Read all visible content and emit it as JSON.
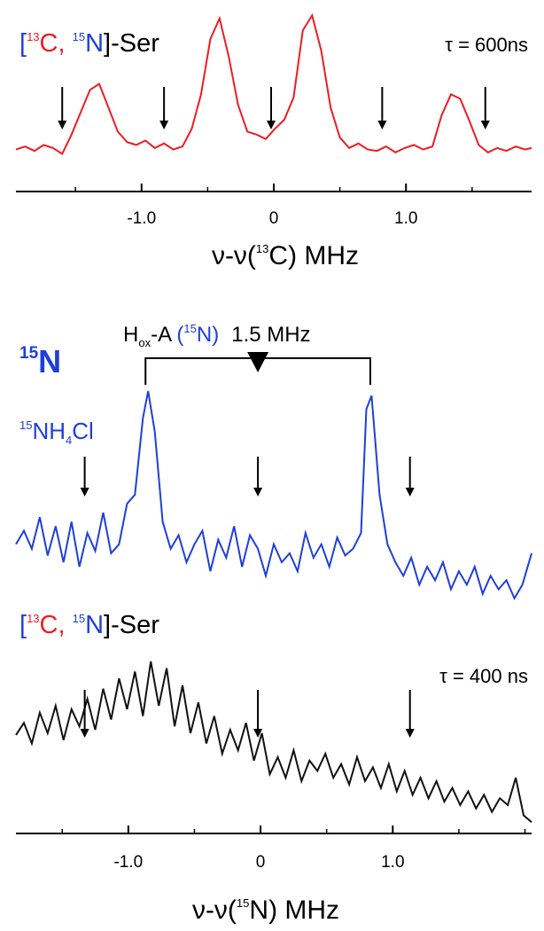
{
  "chart_data": [
    {
      "type": "line",
      "panel": "13C ENDOR",
      "xlabel_prefix": "ν-ν(",
      "xlabel_sup": "13",
      "xlabel_element": "C",
      "xlabel_suffix": ") MHz",
      "xlim": [
        -1.95,
        1.95
      ],
      "xticks": [
        -1.0,
        0,
        1.0
      ],
      "xtick_labels": [
        "-1.0",
        "0",
        "1.0"
      ],
      "grid": false,
      "series": [
        {
          "color": "#ee1c25",
          "label_parts": {
            "open": "[",
            "sup1": "13",
            "el1": "C, ",
            "sup2": "15",
            "el2": "N",
            "close": "]-Ser"
          },
          "tau_text": "τ = 600ns",
          "x": [
            -1.95,
            -1.88,
            -1.81,
            -1.74,
            -1.67,
            -1.6,
            -1.53,
            -1.46,
            -1.39,
            -1.32,
            -1.25,
            -1.18,
            -1.11,
            -1.04,
            -0.97,
            -0.9,
            -0.83,
            -0.76,
            -0.69,
            -0.62,
            -0.55,
            -0.48,
            -0.41,
            -0.34,
            -0.27,
            -0.2,
            -0.13,
            -0.06,
            0.01,
            0.08,
            0.15,
            0.22,
            0.29,
            0.36,
            0.43,
            0.5,
            0.57,
            0.64,
            0.71,
            0.78,
            0.85,
            0.92,
            0.99,
            1.06,
            1.13,
            1.2,
            1.27,
            1.34,
            1.41,
            1.48,
            1.55,
            1.62,
            1.69,
            1.76,
            1.83,
            1.9,
            1.95
          ],
          "y": [
            0.08,
            0.1,
            0.07,
            0.11,
            0.09,
            0.05,
            0.18,
            0.33,
            0.48,
            0.52,
            0.36,
            0.2,
            0.13,
            0.11,
            0.14,
            0.09,
            0.12,
            0.08,
            0.1,
            0.22,
            0.45,
            0.82,
            0.96,
            0.7,
            0.38,
            0.2,
            0.18,
            0.15,
            0.22,
            0.28,
            0.43,
            0.88,
            0.98,
            0.74,
            0.36,
            0.16,
            0.09,
            0.12,
            0.08,
            0.07,
            0.1,
            0.06,
            0.09,
            0.11,
            0.08,
            0.1,
            0.31,
            0.45,
            0.42,
            0.27,
            0.11,
            0.06,
            0.09,
            0.07,
            0.1,
            0.08,
            0.09
          ],
          "ymin": 0,
          "ymax": 1
        }
      ],
      "arrows_x": [
        -1.6,
        -0.83,
        -0.02,
        0.82,
        1.6
      ]
    },
    {
      "type": "line",
      "panel": "15N ENDOR",
      "xlabel_prefix": "ν-ν(",
      "xlabel_sup": "15",
      "xlabel_element": "N",
      "xlabel_suffix": ") MHz",
      "xlim": [
        -1.85,
        2.05
      ],
      "xticks": [
        -1.0,
        0,
        1.0
      ],
      "xtick_labels": [
        "-1.0",
        "0",
        "1.0"
      ],
      "grid": false,
      "panel_label_sup": "15",
      "panel_label_element": "N",
      "bracket": {
        "x_left": -0.87,
        "x_right": 0.83,
        "label_prefix": "H",
        "label_sub": "ox",
        "label_mid": "-A ",
        "label_blue": "(15N)",
        "label_blue_sup": "15",
        "label_blue_element": "N",
        "label_value": "1.5 MHz"
      },
      "series": [
        {
          "color": "#1f3fd8",
          "label_sup": "15",
          "label_text": "NH",
          "label_sub": "4",
          "label_tail": "Cl",
          "x": [
            -1.85,
            -1.79,
            -1.73,
            -1.67,
            -1.61,
            -1.55,
            -1.49,
            -1.43,
            -1.37,
            -1.31,
            -1.25,
            -1.19,
            -1.13,
            -1.07,
            -1.01,
            -0.95,
            -0.89,
            -0.85,
            -0.8,
            -0.74,
            -0.68,
            -0.62,
            -0.56,
            -0.5,
            -0.44,
            -0.38,
            -0.32,
            -0.26,
            -0.2,
            -0.14,
            -0.08,
            -0.02,
            0.04,
            0.1,
            0.16,
            0.22,
            0.28,
            0.34,
            0.4,
            0.46,
            0.52,
            0.58,
            0.64,
            0.7,
            0.76,
            0.8,
            0.84,
            0.9,
            0.96,
            1.02,
            1.08,
            1.14,
            1.2,
            1.26,
            1.32,
            1.38,
            1.44,
            1.5,
            1.56,
            1.62,
            1.68,
            1.74,
            1.8,
            1.86,
            1.92,
            1.98,
            2.05
          ],
          "y": [
            0.3,
            0.36,
            0.28,
            0.42,
            0.25,
            0.38,
            0.22,
            0.4,
            0.2,
            0.35,
            0.27,
            0.44,
            0.26,
            0.3,
            0.48,
            0.52,
            0.86,
            0.98,
            0.8,
            0.4,
            0.28,
            0.34,
            0.22,
            0.3,
            0.36,
            0.18,
            0.32,
            0.24,
            0.38,
            0.2,
            0.34,
            0.28,
            0.16,
            0.3,
            0.22,
            0.26,
            0.18,
            0.35,
            0.24,
            0.3,
            0.2,
            0.33,
            0.25,
            0.28,
            0.35,
            0.9,
            0.96,
            0.52,
            0.3,
            0.22,
            0.16,
            0.24,
            0.12,
            0.2,
            0.14,
            0.22,
            0.1,
            0.18,
            0.12,
            0.2,
            0.08,
            0.16,
            0.1,
            0.14,
            0.06,
            0.12,
            0.26
          ],
          "ymin": 0,
          "ymax": 1
        },
        {
          "color": "#111111",
          "label_parts": {
            "open": "[",
            "sup1": "13",
            "el1": "C, ",
            "sup2": "15",
            "el2": "N",
            "close": "]-Ser"
          },
          "tau_text": "τ = 400 ns",
          "x": [
            -1.85,
            -1.79,
            -1.73,
            -1.67,
            -1.61,
            -1.55,
            -1.49,
            -1.43,
            -1.37,
            -1.31,
            -1.25,
            -1.19,
            -1.13,
            -1.07,
            -1.01,
            -0.95,
            -0.89,
            -0.83,
            -0.77,
            -0.71,
            -0.65,
            -0.59,
            -0.53,
            -0.47,
            -0.41,
            -0.35,
            -0.29,
            -0.23,
            -0.17,
            -0.11,
            -0.05,
            0.01,
            0.07,
            0.13,
            0.19,
            0.25,
            0.31,
            0.37,
            0.43,
            0.49,
            0.55,
            0.61,
            0.67,
            0.73,
            0.79,
            0.85,
            0.91,
            0.97,
            1.03,
            1.09,
            1.15,
            1.21,
            1.27,
            1.33,
            1.39,
            1.45,
            1.51,
            1.57,
            1.63,
            1.69,
            1.75,
            1.81,
            1.87,
            1.93,
            1.99,
            2.05
          ],
          "y": [
            0.55,
            0.62,
            0.5,
            0.68,
            0.56,
            0.72,
            0.52,
            0.7,
            0.6,
            0.76,
            0.58,
            0.82,
            0.64,
            0.88,
            0.7,
            0.92,
            0.66,
            0.98,
            0.72,
            0.94,
            0.6,
            0.84,
            0.56,
            0.74,
            0.5,
            0.66,
            0.44,
            0.58,
            0.46,
            0.62,
            0.4,
            0.56,
            0.32,
            0.42,
            0.3,
            0.46,
            0.28,
            0.4,
            0.34,
            0.44,
            0.3,
            0.38,
            0.26,
            0.42,
            0.28,
            0.36,
            0.24,
            0.38,
            0.22,
            0.34,
            0.2,
            0.3,
            0.18,
            0.28,
            0.16,
            0.24,
            0.14,
            0.22,
            0.12,
            0.2,
            0.1,
            0.18,
            0.14,
            0.3,
            0.08,
            0.04
          ],
          "ymin": 0,
          "ymax": 1
        }
      ],
      "arrows_x": [
        -1.33,
        -0.02,
        1.13
      ]
    }
  ]
}
